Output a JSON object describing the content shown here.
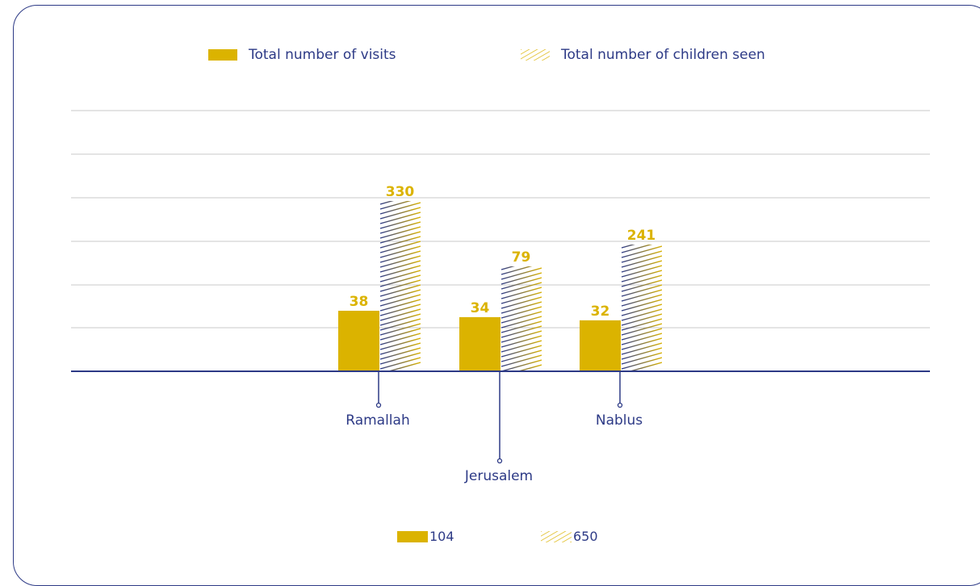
{
  "legend": {
    "visits_label": "Total number of visits",
    "children_label": "Total number of children seen"
  },
  "totals": {
    "visits": "104",
    "children": "650"
  },
  "colors": {
    "gold": "#dbb300",
    "navy": "#2d3a86",
    "grid": "#c8c8c8"
  },
  "chart_data": {
    "type": "bar",
    "categories": [
      "Ramallah",
      "Jerusalem",
      "Nablus"
    ],
    "series": [
      {
        "name": "Total number of visits",
        "values": [
          38,
          34,
          32
        ],
        "style": "solid"
      },
      {
        "name": "Total number of children seen",
        "values": [
          330,
          79,
          241
        ],
        "style": "hatched"
      }
    ],
    "grid": true,
    "legend_position": "top"
  }
}
